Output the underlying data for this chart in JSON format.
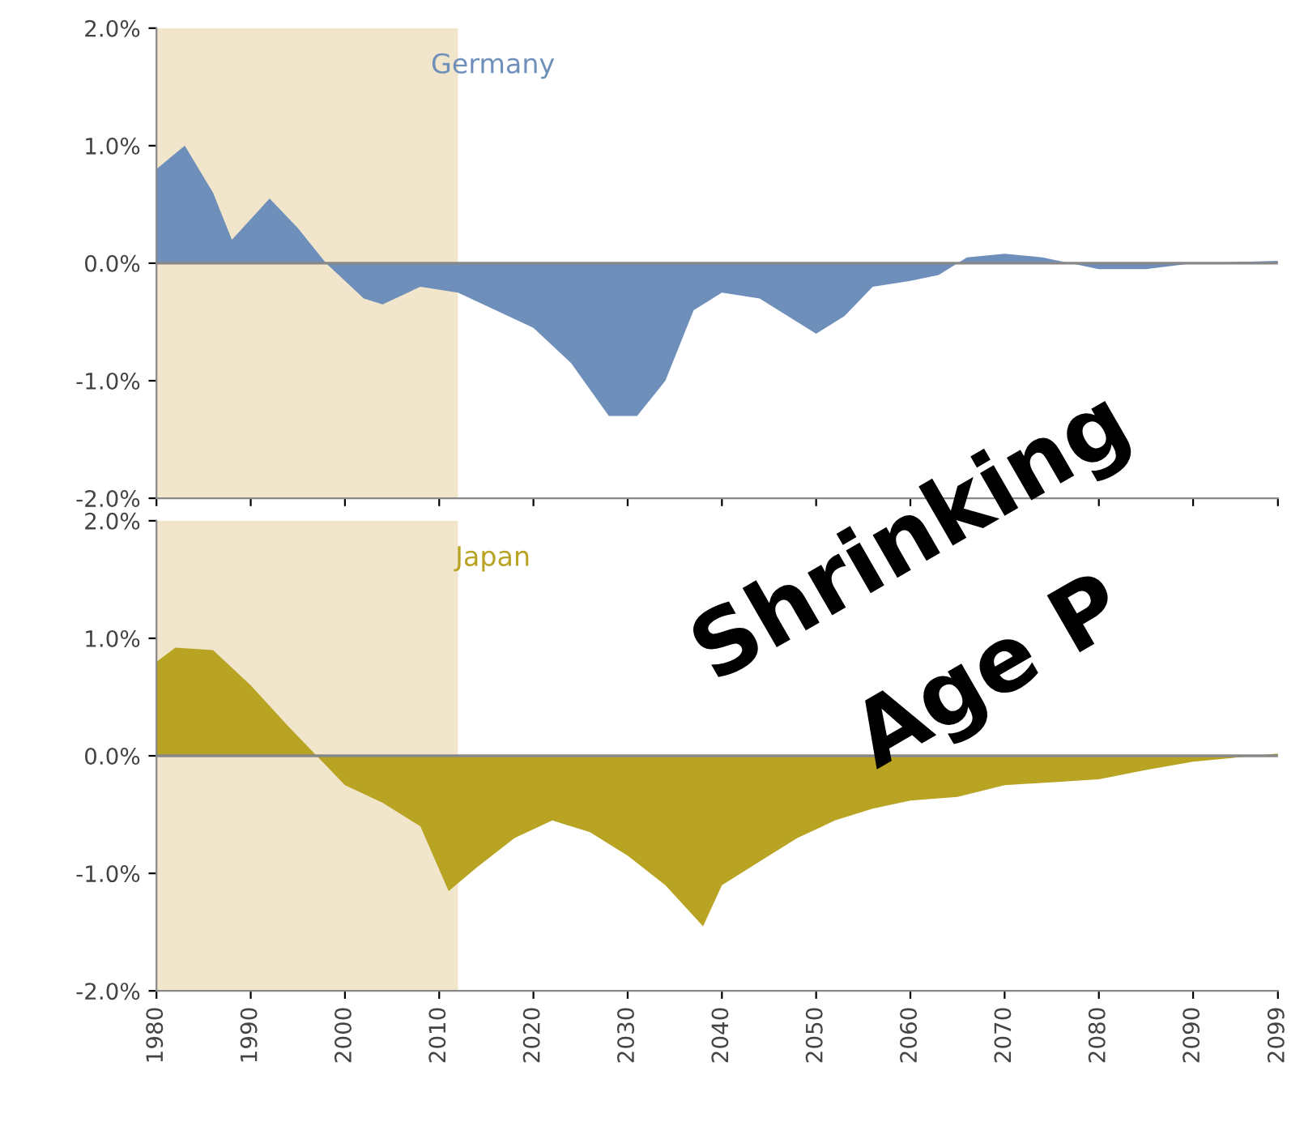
{
  "chart_data": [
    {
      "type": "area",
      "title": "Germany",
      "tick_labels": "y",
      "xlim": [
        1980,
        2099
      ],
      "ylim": [
        -2,
        2
      ],
      "yticks": [
        {
          "value": 2,
          "label": "2.0%"
        },
        {
          "value": 1,
          "label": "1.0%"
        },
        {
          "value": 0,
          "label": "0.0%"
        },
        {
          "value": -1,
          "label": "-1.0%"
        },
        {
          "value": -2,
          "label": "-2.0%"
        }
      ],
      "xticks": [
        1980,
        1990,
        2000,
        2010,
        2020,
        2030,
        2040,
        2050,
        2060,
        2070,
        2080,
        2090,
        2099
      ],
      "bands": [
        {
          "axis": "x",
          "from": 1980,
          "to": 2012,
          "color": "#f1e6cc"
        }
      ],
      "annotations": [
        "Shrinking"
      ],
      "x": [
        1980,
        1983,
        1986,
        1988,
        1992,
        1995,
        1998,
        2002,
        2004,
        2008,
        2012,
        2016,
        2020,
        2024,
        2028,
        2031,
        2034,
        2037,
        2040,
        2044,
        2048,
        2050,
        2053,
        2056,
        2060,
        2063,
        2066,
        2070,
        2074,
        2077,
        2080,
        2085,
        2090,
        2099
      ],
      "series": [
        {
          "color": "#6f8fbb",
          "values": [
            0.8,
            1.0,
            0.6,
            0.2,
            0.55,
            0.3,
            0.0,
            -0.3,
            -0.35,
            -0.2,
            -0.25,
            -0.4,
            -0.55,
            -0.85,
            -1.3,
            -1.3,
            -1.0,
            -0.4,
            -0.25,
            -0.3,
            -0.5,
            -0.6,
            -0.45,
            -0.2,
            -0.15,
            -0.1,
            0.05,
            0.08,
            0.05,
            0.0,
            -0.05,
            -0.05,
            0.0,
            0.02
          ]
        }
      ]
    },
    {
      "type": "area",
      "title": "Japan",
      "xlim": [
        1980,
        2099
      ],
      "ylim": [
        -2,
        2
      ],
      "yticks": [
        {
          "value": 2,
          "label": "2.0%"
        },
        {
          "value": 1,
          "label": "1.0%"
        },
        {
          "value": 0,
          "label": "0.0%"
        },
        {
          "value": -1,
          "label": "-1.0%"
        },
        {
          "value": -2,
          "label": "-2.0%"
        }
      ],
      "xticks": [
        1980,
        1990,
        2000,
        2010,
        2020,
        2030,
        2040,
        2050,
        2060,
        2070,
        2080,
        2090,
        2099
      ],
      "bands": [
        {
          "axis": "x",
          "from": 1980,
          "to": 2012,
          "color": "#f1e6cc"
        }
      ],
      "annotations": [
        "Age P"
      ],
      "x": [
        1980,
        1982,
        1986,
        1990,
        1994,
        1997,
        2000,
        2004,
        2008,
        2011,
        2014,
        2018,
        2022,
        2026,
        2030,
        2034,
        2038,
        2040,
        2044,
        2048,
        2052,
        2056,
        2060,
        2065,
        2070,
        2076,
        2080,
        2085,
        2090,
        2099
      ],
      "series": [
        {
          "color": "#b8a322",
          "values": [
            0.8,
            0.92,
            0.9,
            0.6,
            0.25,
            0.0,
            -0.25,
            -0.4,
            -0.6,
            -1.15,
            -0.95,
            -0.7,
            -0.55,
            -0.65,
            -0.85,
            -1.1,
            -1.45,
            -1.1,
            -0.9,
            -0.7,
            -0.55,
            -0.45,
            -0.38,
            -0.35,
            -0.25,
            -0.22,
            -0.2,
            -0.12,
            -0.05,
            0.02
          ]
        }
      ]
    }
  ]
}
